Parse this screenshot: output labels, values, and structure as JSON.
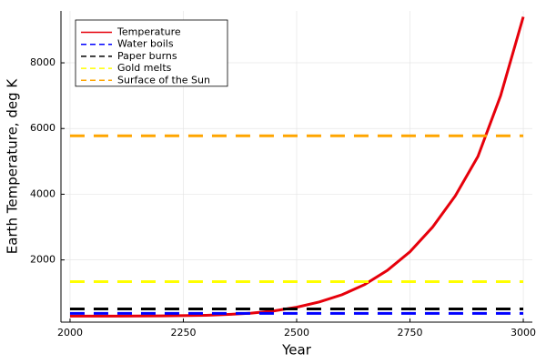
{
  "chart_data": {
    "type": "line",
    "xlabel": "Year",
    "ylabel": "Earth Temperature, deg K",
    "xlim": [
      1980,
      3020
    ],
    "ylim": [
      106,
      9580
    ],
    "xticks": [
      2000,
      2250,
      2500,
      2750,
      3000
    ],
    "yticks": [
      2000,
      4000,
      6000,
      8000
    ],
    "grid": true,
    "legend": "top-left",
    "series": [
      {
        "name": "Temperature",
        "color": "#e6000b",
        "dash": false,
        "x": [
          2000,
          2100,
          2200,
          2300,
          2350,
          2400,
          2450,
          2500,
          2550,
          2600,
          2650,
          2700,
          2750,
          2800,
          2850,
          2900,
          2950,
          3000
        ],
        "values": [
          288,
          289,
          295,
          315,
          340,
          380,
          450,
          560,
          720,
          940,
          1250,
          1680,
          2250,
          3000,
          3950,
          5150,
          7000,
          9400
        ]
      },
      {
        "name": "Water boils",
        "color": "#0000ff",
        "dash": true,
        "x": [
          2000,
          3000
        ],
        "values": [
          373,
          373
        ]
      },
      {
        "name": "Paper burns",
        "color": "#000000",
        "dash": true,
        "x": [
          2000,
          3000
        ],
        "values": [
          506,
          506
        ]
      },
      {
        "name": "Gold melts",
        "color": "#ffff00",
        "dash": true,
        "x": [
          2000,
          3000
        ],
        "values": [
          1337,
          1337
        ]
      },
      {
        "name": "Surface of the Sun",
        "color": "#ffa500",
        "dash": true,
        "x": [
          2000,
          3000
        ],
        "values": [
          5778,
          5778
        ]
      }
    ]
  }
}
